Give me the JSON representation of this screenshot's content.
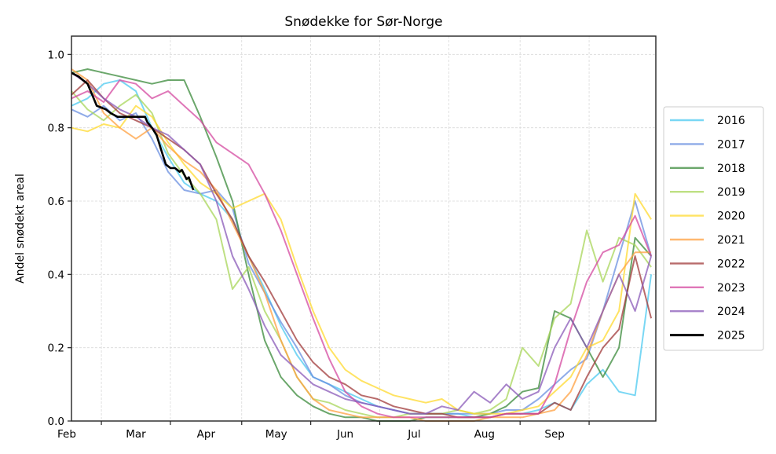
{
  "chart_data": {
    "type": "line",
    "title": "Snødekke for Sør-Norge",
    "xlabel": "",
    "ylabel": "Andel snødekt areal",
    "ylim": [
      0.0,
      1.05
    ],
    "xlim_days": [
      0,
      254
    ],
    "x_unit": "days since ~18 Feb",
    "grid": true,
    "legend_position": "right",
    "yticks": [
      {
        "value": 0.0,
        "label": "0.0"
      },
      {
        "value": 0.2,
        "label": "0.2"
      },
      {
        "value": 0.4,
        "label": "0.4"
      },
      {
        "value": 0.6,
        "label": "0.6"
      },
      {
        "value": 0.8,
        "label": "0.8"
      },
      {
        "value": 1.0,
        "label": "1.0"
      }
    ],
    "xticks": [
      13,
      43,
      74,
      104,
      134,
      164,
      195,
      225
    ],
    "month_labels": [
      {
        "label": "Feb",
        "day": 0
      },
      {
        "label": "Mar",
        "day": 28
      },
      {
        "label": "Apr",
        "day": 58
      },
      {
        "label": "May",
        "day": 88
      },
      {
        "label": "Jun",
        "day": 119
      },
      {
        "label": "Jul",
        "day": 149
      },
      {
        "label": "Aug",
        "day": 179
      },
      {
        "label": "Sep",
        "day": 210
      }
    ],
    "x": [
      0,
      7,
      14,
      21,
      28,
      35,
      42,
      49,
      56,
      63,
      70,
      77,
      84,
      91,
      98,
      105,
      112,
      119,
      126,
      133,
      140,
      147,
      154,
      161,
      168,
      175,
      182,
      189,
      196,
      203,
      210,
      217,
      224,
      231,
      238,
      245,
      252
    ],
    "series": [
      {
        "name": "2016",
        "color": "#4cc9f0",
        "values": [
          0.86,
          0.88,
          0.92,
          0.93,
          0.9,
          0.8,
          0.72,
          0.65,
          0.62,
          0.6,
          0.55,
          0.45,
          0.36,
          0.26,
          0.18,
          0.12,
          0.1,
          0.08,
          0.06,
          0.04,
          0.03,
          0.02,
          0.02,
          0.02,
          0.02,
          0.01,
          0.01,
          0.02,
          0.02,
          0.03,
          0.05,
          0.03,
          0.1,
          0.14,
          0.08,
          0.07,
          0.4
        ]
      },
      {
        "name": "2017",
        "color": "#6a8fe0",
        "values": [
          0.85,
          0.83,
          0.86,
          0.82,
          0.84,
          0.77,
          0.68,
          0.63,
          0.62,
          0.63,
          0.58,
          0.43,
          0.35,
          0.27,
          0.2,
          0.12,
          0.1,
          0.07,
          0.05,
          0.04,
          0.03,
          0.02,
          0.02,
          0.02,
          0.02,
          0.02,
          0.02,
          0.03,
          0.03,
          0.06,
          0.1,
          0.14,
          0.17,
          0.3,
          0.45,
          0.6,
          0.45
        ]
      },
      {
        "name": "2018",
        "color": "#3a8a3a",
        "values": [
          0.95,
          0.96,
          0.95,
          0.94,
          0.93,
          0.92,
          0.93,
          0.93,
          0.83,
          0.72,
          0.6,
          0.4,
          0.22,
          0.12,
          0.07,
          0.04,
          0.02,
          0.01,
          0.01,
          0.0,
          0.0,
          0.0,
          0.01,
          0.01,
          0.01,
          0.01,
          0.02,
          0.04,
          0.08,
          0.09,
          0.3,
          0.28,
          0.2,
          0.12,
          0.2,
          0.5,
          0.45
        ]
      },
      {
        "name": "2019",
        "color": "#a8d65a",
        "values": [
          0.9,
          0.85,
          0.82,
          0.86,
          0.89,
          0.84,
          0.73,
          0.67,
          0.62,
          0.55,
          0.36,
          0.42,
          0.3,
          0.22,
          0.12,
          0.06,
          0.05,
          0.03,
          0.02,
          0.01,
          0.01,
          0.02,
          0.02,
          0.02,
          0.03,
          0.02,
          0.03,
          0.06,
          0.2,
          0.15,
          0.28,
          0.32,
          0.52,
          0.38,
          0.5,
          0.48,
          0.42
        ]
      },
      {
        "name": "2020",
        "color": "#ffd92f",
        "values": [
          0.8,
          0.79,
          0.81,
          0.8,
          0.86,
          0.83,
          0.76,
          0.7,
          0.65,
          0.62,
          0.58,
          0.6,
          0.62,
          0.55,
          0.42,
          0.3,
          0.2,
          0.14,
          0.11,
          0.09,
          0.07,
          0.06,
          0.05,
          0.06,
          0.03,
          0.02,
          0.02,
          0.02,
          0.03,
          0.04,
          0.08,
          0.12,
          0.2,
          0.22,
          0.3,
          0.62,
          0.55
        ]
      },
      {
        "name": "2021",
        "color": "#ffa040",
        "values": [
          0.96,
          0.93,
          0.84,
          0.8,
          0.77,
          0.8,
          0.75,
          0.71,
          0.68,
          0.63,
          0.54,
          0.45,
          0.35,
          0.22,
          0.12,
          0.06,
          0.03,
          0.02,
          0.01,
          0.01,
          0.01,
          0.01,
          0.0,
          0.0,
          0.0,
          0.0,
          0.01,
          0.01,
          0.01,
          0.02,
          0.03,
          0.08,
          0.18,
          0.3,
          0.4,
          0.46,
          0.46
        ]
      },
      {
        "name": "2022",
        "color": "#a03a3a",
        "values": [
          0.89,
          0.93,
          0.88,
          0.84,
          0.82,
          0.8,
          0.77,
          0.74,
          0.7,
          0.62,
          0.55,
          0.45,
          0.38,
          0.3,
          0.22,
          0.16,
          0.12,
          0.1,
          0.07,
          0.06,
          0.04,
          0.03,
          0.02,
          0.02,
          0.01,
          0.01,
          0.01,
          0.02,
          0.02,
          0.02,
          0.05,
          0.03,
          0.12,
          0.2,
          0.25,
          0.45,
          0.28
        ]
      },
      {
        "name": "2023",
        "color": "#d44aa0",
        "values": [
          0.88,
          0.9,
          0.87,
          0.93,
          0.92,
          0.88,
          0.9,
          0.86,
          0.82,
          0.76,
          0.73,
          0.7,
          0.62,
          0.52,
          0.4,
          0.28,
          0.17,
          0.08,
          0.04,
          0.02,
          0.01,
          0.01,
          0.01,
          0.01,
          0.01,
          0.01,
          0.01,
          0.02,
          0.02,
          0.02,
          0.1,
          0.25,
          0.38,
          0.46,
          0.48,
          0.56,
          0.45
        ]
      },
      {
        "name": "2024",
        "color": "#8a5ab8",
        "values": [
          0.95,
          0.92,
          0.88,
          0.85,
          0.83,
          0.8,
          0.78,
          0.74,
          0.7,
          0.6,
          0.45,
          0.36,
          0.26,
          0.18,
          0.14,
          0.1,
          0.08,
          0.06,
          0.05,
          0.04,
          0.03,
          0.02,
          0.02,
          0.04,
          0.03,
          0.08,
          0.05,
          0.1,
          0.06,
          0.08,
          0.2,
          0.28,
          0.2,
          0.3,
          0.4,
          0.3,
          0.45
        ]
      }
    ],
    "current_series": {
      "name": "2025",
      "color": "#000000",
      "x": [
        0,
        3,
        5,
        7,
        9,
        11,
        13,
        15,
        17,
        20,
        23,
        26,
        29,
        32,
        33,
        35,
        37,
        39,
        41,
        43,
        45,
        47,
        48,
        50,
        51,
        53
      ],
      "values": [
        0.95,
        0.94,
        0.93,
        0.92,
        0.89,
        0.86,
        0.855,
        0.85,
        0.84,
        0.83,
        0.83,
        0.83,
        0.83,
        0.83,
        0.815,
        0.8,
        0.78,
        0.74,
        0.7,
        0.69,
        0.69,
        0.68,
        0.685,
        0.66,
        0.665,
        0.63
      ]
    }
  }
}
